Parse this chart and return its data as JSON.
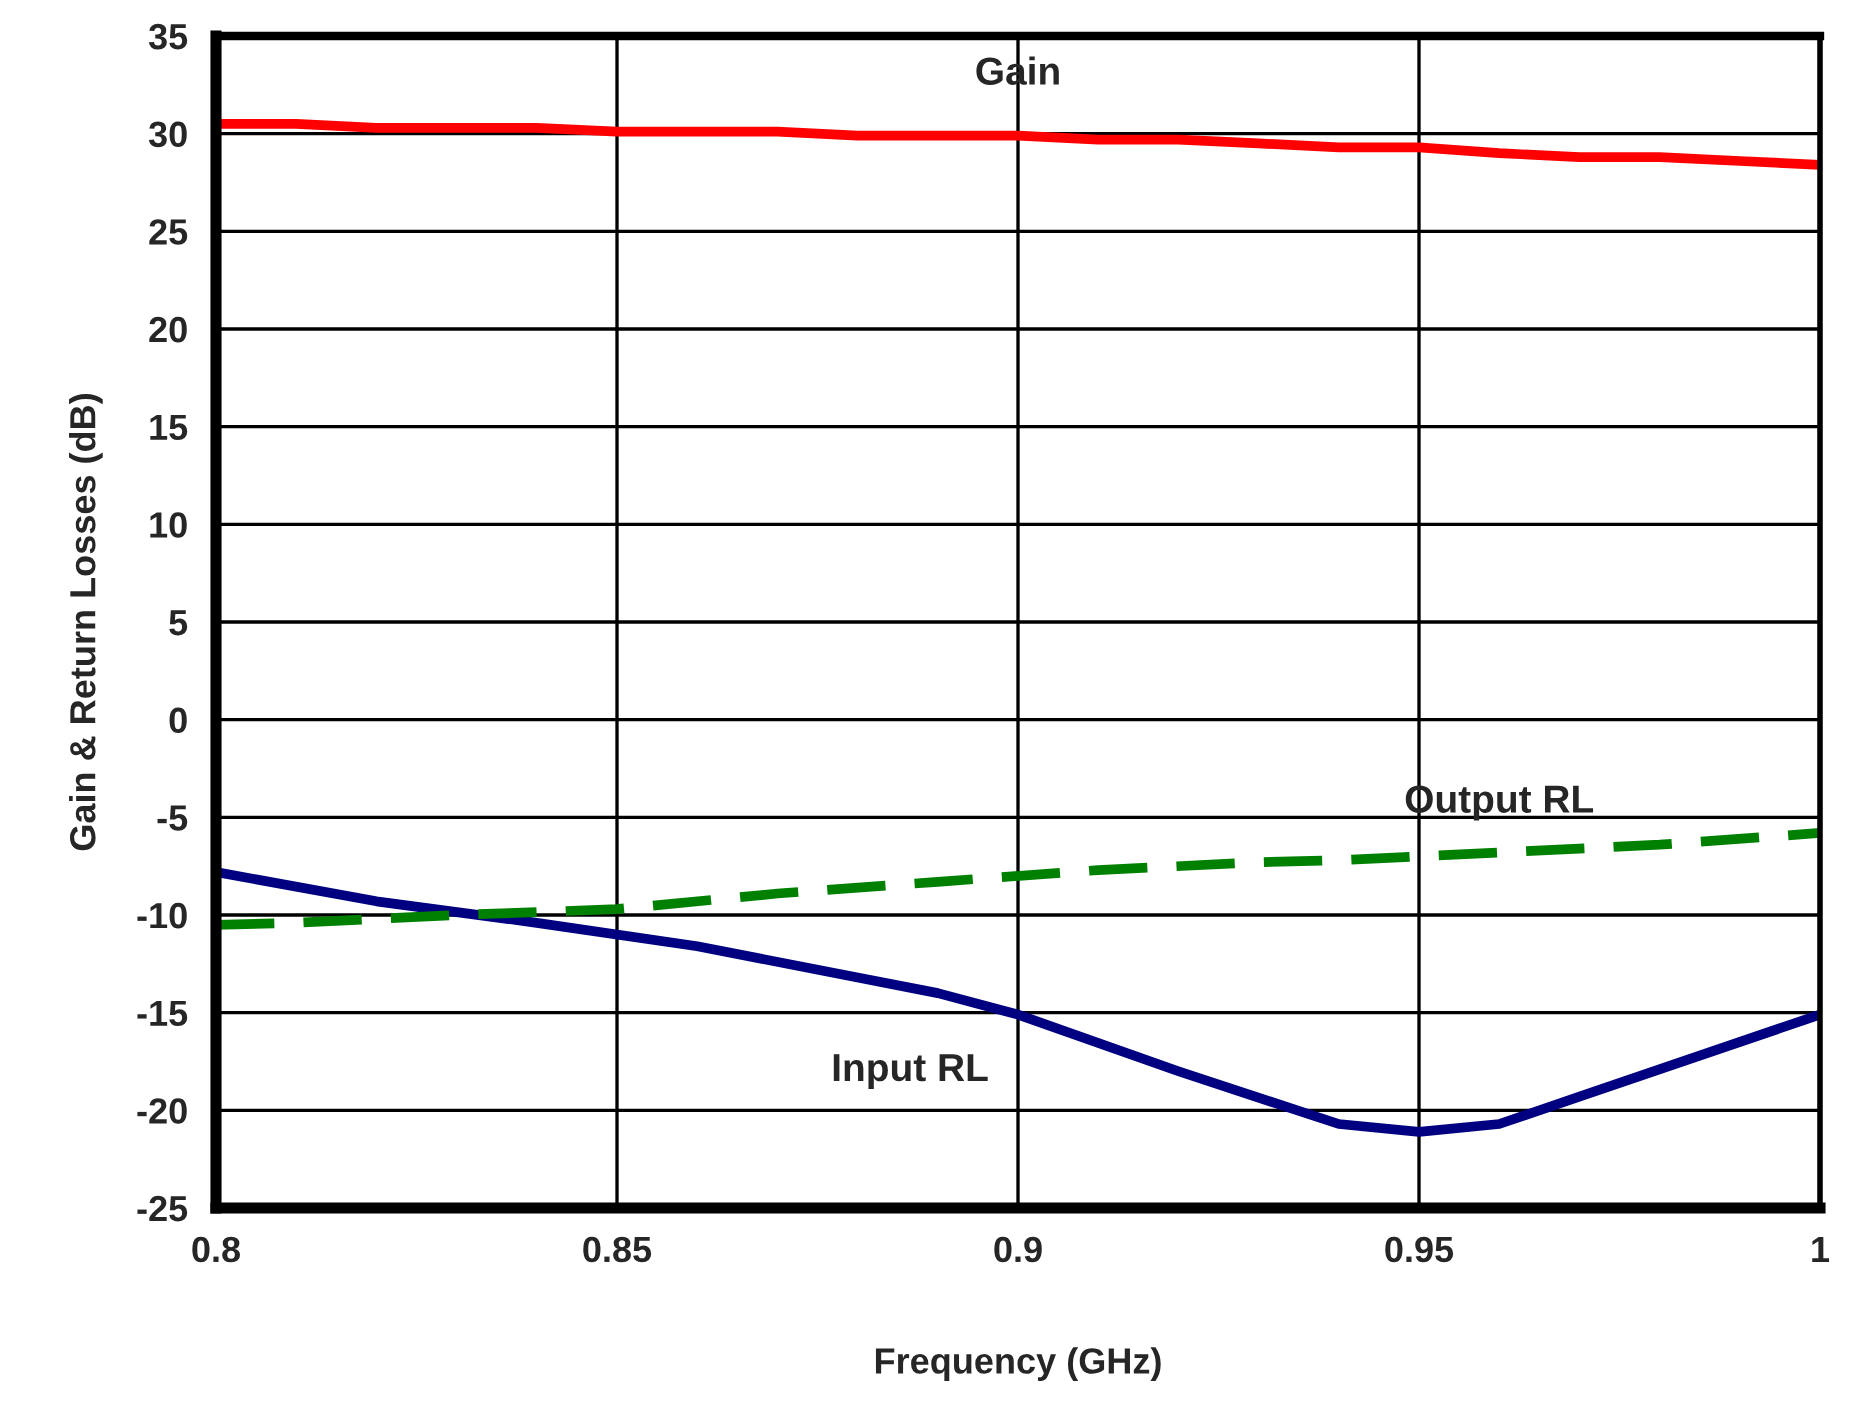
{
  "chart_data": {
    "type": "line",
    "xlabel": "Frequency (GHz)",
    "ylabel": "Gain & Return Losses (dB)",
    "xlim": [
      0.8,
      1.0
    ],
    "xticks": [
      0.8,
      0.85,
      0.9,
      0.95,
      1
    ],
    "ylim": [
      -25,
      35
    ],
    "yticks": [
      -25,
      -20,
      -15,
      -10,
      -5,
      0,
      5,
      10,
      15,
      20,
      25,
      30,
      35
    ],
    "grid": true,
    "marker": "none",
    "series": [
      {
        "name": "Gain",
        "color": "#ff0000",
        "line_style": "solid",
        "x": [
          0.8,
          0.81,
          0.82,
          0.83,
          0.84,
          0.85,
          0.86,
          0.87,
          0.88,
          0.89,
          0.9,
          0.91,
          0.92,
          0.93,
          0.94,
          0.95,
          0.96,
          0.97,
          0.98,
          0.99,
          1.0
        ],
        "values": [
          30.5,
          30.5,
          30.3,
          30.3,
          30.3,
          30.1,
          30.1,
          30.1,
          29.9,
          29.9,
          29.9,
          29.7,
          29.7,
          29.5,
          29.3,
          29.3,
          29.0,
          28.8,
          28.8,
          28.6,
          28.4
        ]
      },
      {
        "name": "Input RL",
        "color": "#000080",
        "line_style": "solid",
        "x": [
          0.8,
          0.82,
          0.84,
          0.86,
          0.88,
          0.89,
          0.9,
          0.92,
          0.94,
          0.95,
          0.96,
          0.97,
          1.0
        ],
        "values": [
          -7.8,
          -9.3,
          -10.4,
          -11.6,
          -13.2,
          -14.0,
          -15.1,
          -18.0,
          -20.7,
          -21.1,
          -20.7,
          -19.3,
          -15.1
        ]
      },
      {
        "name": "Output RL",
        "color": "#008000",
        "line_style": "dashed",
        "x": [
          0.8,
          0.81,
          0.83,
          0.85,
          0.87,
          0.89,
          0.91,
          0.93,
          0.94,
          0.96,
          0.98,
          1.0
        ],
        "values": [
          -10.5,
          -10.4,
          -10.0,
          -9.7,
          -8.9,
          -8.3,
          -7.7,
          -7.3,
          -7.2,
          -6.8,
          -6.4,
          -5.8
        ]
      }
    ]
  }
}
